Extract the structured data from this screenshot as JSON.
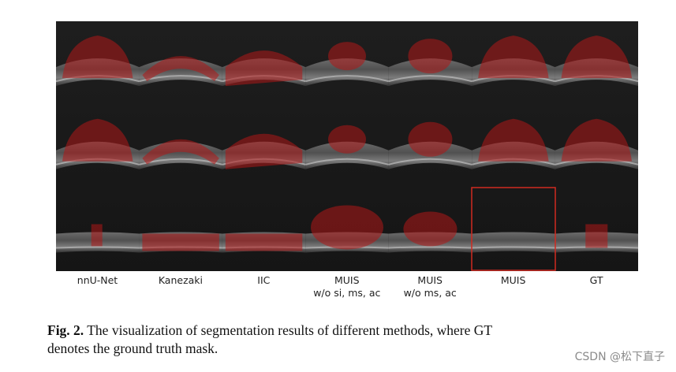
{
  "figure": {
    "columns": [
      {
        "label": "nnU-Net",
        "sublabel": ""
      },
      {
        "label": "Kanezaki",
        "sublabel": ""
      },
      {
        "label": "IIC",
        "sublabel": ""
      },
      {
        "label": "MUIS",
        "sublabel": "w/o si, ms, ac"
      },
      {
        "label": "MUIS",
        "sublabel": "w/o ms, ac"
      },
      {
        "label": "MUIS",
        "sublabel": ""
      },
      {
        "label": "GT",
        "sublabel": ""
      }
    ],
    "rows": 3,
    "highlight_color": "#d02a20",
    "mask_color": "#b01818"
  },
  "caption": {
    "prefix": "Fig. 2.",
    "text": " The visualization of segmentation results of different methods, where GT",
    "text_line2": "denotes the ground truth mask."
  },
  "watermark": "CSDN @松下直子"
}
